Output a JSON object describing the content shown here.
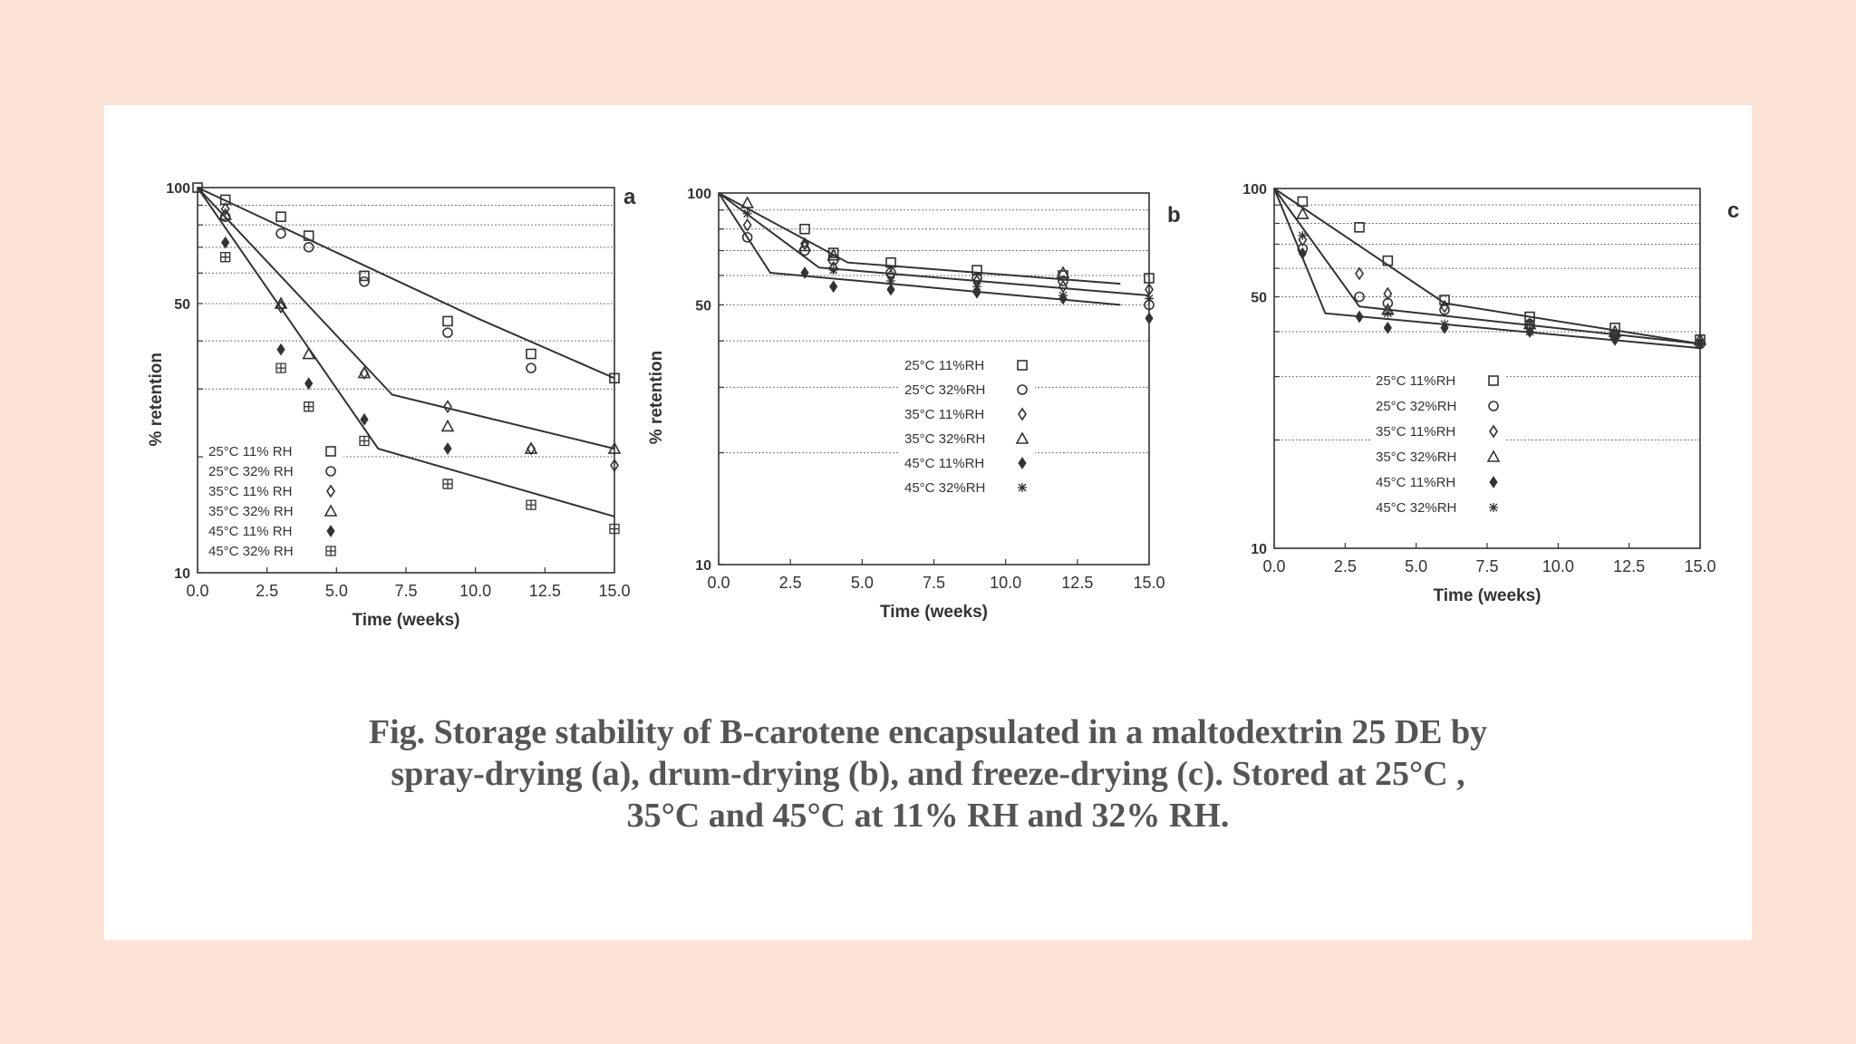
{
  "caption": {
    "line1": "Fig. Storage stability of B-carotene encapsulated in a maltodextrin 25 DE by",
    "line2": "spray-drying (a), drum-drying (b), and freeze-drying (c). Stored at 25°C ,",
    "line3": "35°C and 45°C at 11% RH and 32% RH."
  },
  "colors": {
    "page_bg": "#fce3d8",
    "card_bg": "#ffffff",
    "ink": "#333333",
    "caption": "#555555"
  },
  "chart_data": [
    {
      "id": "a",
      "panel_label": "a",
      "type": "scatter",
      "title": "",
      "xlabel": "Time (weeks)",
      "ylabel": "% retention",
      "y_scale": "log",
      "xlim": [
        0,
        15
      ],
      "ylim": [
        10,
        100
      ],
      "x_ticks": [
        "0.0",
        "2.5",
        "5.0",
        "7.5",
        "10.0",
        "12.5",
        "15.0"
      ],
      "y_ticks": [
        "100",
        "50",
        "10"
      ],
      "legend_position": "bottom-left",
      "series": [
        {
          "name": "25°C 11% RH",
          "marker": "square",
          "x": [
            0,
            1,
            3,
            4,
            6,
            9,
            12,
            15
          ],
          "y": [
            100,
            93,
            84,
            75,
            59,
            45,
            37,
            32
          ]
        },
        {
          "name": "25°C 32% RH",
          "marker": "circle",
          "x": [
            1,
            3,
            4,
            6,
            9,
            12
          ],
          "y": [
            84,
            76,
            70,
            57,
            42,
            34
          ]
        },
        {
          "name": "35°C 11% RH",
          "marker": "diamond",
          "x": [
            1,
            3,
            6,
            9,
            12,
            15
          ],
          "y": [
            88,
            49,
            33,
            27,
            21,
            19
          ]
        },
        {
          "name": "35°C 32% RH",
          "marker": "triangle",
          "x": [
            1,
            3,
            4,
            6,
            9,
            12,
            15
          ],
          "y": [
            85,
            50,
            37,
            33,
            24,
            21,
            21
          ]
        },
        {
          "name": "45°C 11% RH",
          "marker": "filled-diamond",
          "x": [
            1,
            3,
            4,
            6,
            9
          ],
          "y": [
            72,
            38,
            31,
            25,
            21
          ]
        },
        {
          "name": "45°C 32% RH",
          "marker": "boxed-plus",
          "x": [
            1,
            3,
            4,
            6,
            9,
            12,
            15
          ],
          "y": [
            66,
            34,
            27,
            22,
            17,
            15,
            13
          ]
        }
      ],
      "fit_lines": [
        {
          "x": [
            0,
            10,
            15
          ],
          "y": [
            100,
            46,
            32
          ]
        },
        {
          "x": [
            0,
            7,
            15
          ],
          "y": [
            100,
            29,
            21
          ]
        },
        {
          "x": [
            0,
            6.5,
            15
          ],
          "y": [
            100,
            21,
            14
          ]
        }
      ]
    },
    {
      "id": "b",
      "panel_label": "b",
      "type": "scatter",
      "title": "",
      "xlabel": "Time   (weeks)",
      "ylabel": "% retention",
      "y_scale": "log",
      "xlim": [
        0,
        15
      ],
      "ylim": [
        10,
        100
      ],
      "x_ticks": [
        "0.0",
        "2.5",
        "5.0",
        "7.5",
        "10.0",
        "12.5",
        "15.0"
      ],
      "y_ticks": [
        "100",
        "50",
        "10"
      ],
      "legend_position": "center",
      "series": [
        {
          "name": "25°C 11%RH",
          "marker": "square",
          "x": [
            3,
            4,
            6,
            9,
            12,
            15
          ],
          "y": [
            80,
            69,
            65,
            62,
            60,
            59
          ]
        },
        {
          "name": "25°C 32%RH",
          "marker": "circle",
          "x": [
            1,
            3,
            4,
            6,
            9,
            12,
            15
          ],
          "y": [
            76,
            70,
            66,
            61,
            59,
            58,
            50
          ]
        },
        {
          "name": "35°C 11%RH",
          "marker": "diamond",
          "x": [
            1,
            3,
            4,
            6,
            9,
            12,
            15
          ],
          "y": [
            82,
            73,
            63,
            60,
            58,
            56,
            55
          ]
        },
        {
          "name": "35°C 32%RH",
          "marker": "triangle",
          "x": [
            1,
            3,
            4,
            12
          ],
          "y": [
            94,
            72,
            68,
            61
          ]
        },
        {
          "name": "45°C 11%RH",
          "marker": "filled-diamond",
          "x": [
            3,
            4,
            6,
            9,
            12,
            15
          ],
          "y": [
            61,
            56,
            55,
            54,
            52,
            46
          ]
        },
        {
          "name": "45°C 32%RH",
          "marker": "asterisk",
          "x": [
            1,
            4,
            6,
            9,
            12,
            15
          ],
          "y": [
            88,
            62,
            58,
            56,
            53,
            52
          ]
        }
      ],
      "fit_lines": [
        {
          "x": [
            0,
            4.5,
            14
          ],
          "y": [
            100,
            65,
            57
          ]
        },
        {
          "x": [
            0,
            3.5,
            15
          ],
          "y": [
            100,
            63,
            53
          ]
        },
        {
          "x": [
            0,
            1.8,
            14
          ],
          "y": [
            100,
            61,
            50
          ]
        }
      ]
    },
    {
      "id": "c",
      "panel_label": "c",
      "type": "scatter",
      "title": "",
      "xlabel": "Time (weeks)",
      "ylabel": "",
      "y_scale": "log",
      "xlim": [
        0,
        15
      ],
      "ylim": [
        10,
        100
      ],
      "x_ticks": [
        "0.0",
        "2.5",
        "5.0",
        "7.5",
        "10.0",
        "12.5",
        "15.0"
      ],
      "y_ticks": [
        "100",
        "50",
        "10"
      ],
      "legend_position": "center",
      "series": [
        {
          "name": "25°C 11%RH",
          "marker": "square",
          "x": [
            1,
            3,
            4,
            6,
            9,
            12,
            15
          ],
          "y": [
            92,
            78,
            63,
            49,
            44,
            41,
            38
          ]
        },
        {
          "name": "25°C 32%RH",
          "marker": "circle",
          "x": [
            1,
            3,
            4,
            6,
            9,
            12,
            15
          ],
          "y": [
            68,
            50,
            48,
            46,
            42,
            39,
            37
          ]
        },
        {
          "name": "35°C 11%RH",
          "marker": "diamond",
          "x": [
            1,
            3,
            4,
            6,
            9,
            12
          ],
          "y": [
            72,
            58,
            51,
            47,
            41,
            39
          ]
        },
        {
          "name": "35°C 32%RH",
          "marker": "triangle",
          "x": [
            1,
            4,
            9,
            12,
            15
          ],
          "y": [
            85,
            46,
            42,
            40,
            38
          ]
        },
        {
          "name": "45°C 11%RH",
          "marker": "filled-diamond",
          "x": [
            1,
            3,
            4,
            6,
            9,
            12,
            15
          ],
          "y": [
            66,
            44,
            41,
            41,
            40,
            38,
            37
          ]
        },
        {
          "name": "45°C 32%RH",
          "marker": "asterisk",
          "x": [
            1,
            4,
            6,
            9,
            12
          ],
          "y": [
            74,
            45,
            42,
            40,
            39
          ]
        }
      ],
      "fit_lines": [
        {
          "x": [
            0,
            6,
            15
          ],
          "y": [
            100,
            48,
            37
          ]
        },
        {
          "x": [
            0,
            3,
            15
          ],
          "y": [
            100,
            47,
            37
          ]
        },
        {
          "x": [
            0,
            1.8,
            15
          ],
          "y": [
            100,
            45,
            36
          ]
        }
      ]
    }
  ]
}
